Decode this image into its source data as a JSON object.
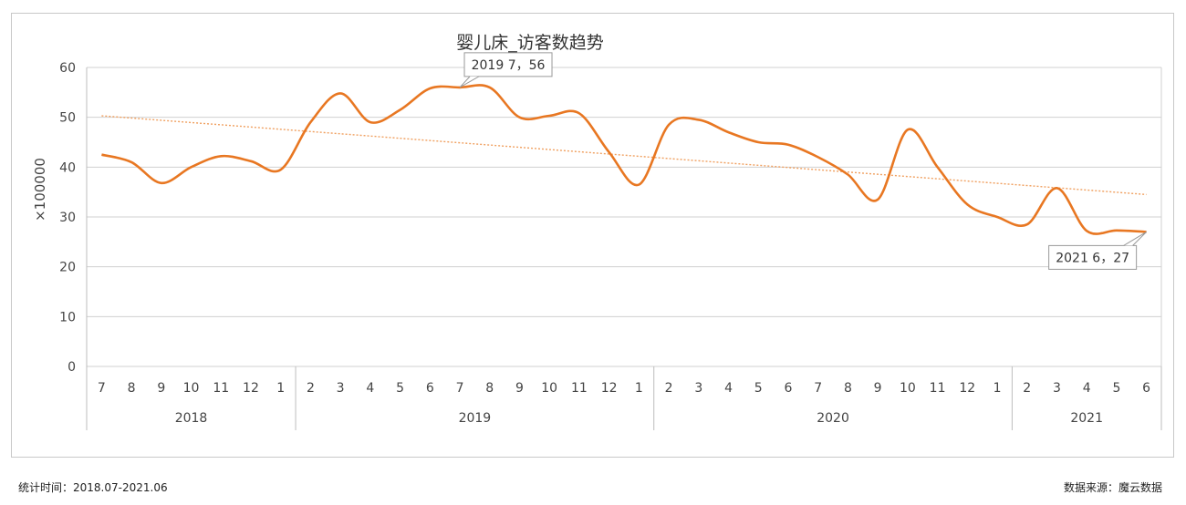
{
  "chart_data": {
    "type": "line",
    "title": "婴儿床_访客数趋势",
    "ylabel": "×100000",
    "xlabel": "",
    "ylim": [
      0,
      60
    ],
    "yticks": [
      0,
      10,
      20,
      30,
      40,
      50,
      60
    ],
    "grid": true,
    "month_labels": [
      "7",
      "8",
      "9",
      "10",
      "11",
      "12",
      "1",
      "2",
      "3",
      "4",
      "5",
      "6",
      "7",
      "8",
      "9",
      "10",
      "11",
      "12",
      "1",
      "2",
      "3",
      "4",
      "5",
      "6",
      "7",
      "8",
      "9",
      "10",
      "11",
      "12",
      "1",
      "2",
      "3",
      "4",
      "5",
      "6"
    ],
    "year_groups": [
      {
        "label": "2018",
        "start": 0,
        "end": 6
      },
      {
        "label": "2019",
        "start": 7,
        "end": 18
      },
      {
        "label": "2020",
        "start": 19,
        "end": 30
      },
      {
        "label": "2021",
        "start": 31,
        "end": 35
      }
    ],
    "series": [
      {
        "color": "#e87722",
        "values": [
          42.5,
          41,
          36.8,
          40,
          42.2,
          41.2,
          39.5,
          49,
          54.8,
          49,
          51.5,
          55.8,
          56,
          56,
          50,
          50.3,
          50.8,
          43,
          36.5,
          48.5,
          49.5,
          47,
          45,
          44.5,
          42,
          38.5,
          33.5,
          47.5,
          40,
          32.5,
          30,
          28.5,
          35.8,
          27.2,
          27.3,
          27
        ]
      }
    ],
    "trendline": {
      "color": "#f0a060",
      "start": 50.3,
      "end": 34.5
    },
    "annotations": [
      {
        "index": 12,
        "text": "2019 7，56"
      },
      {
        "index": 35,
        "text": "2021 6，27"
      }
    ]
  },
  "footer": {
    "stat_time_label": "统计时间：",
    "stat_time_value": "2018.07-2021.06",
    "source_label": "数据来源：",
    "source_value": "魔云数据"
  }
}
